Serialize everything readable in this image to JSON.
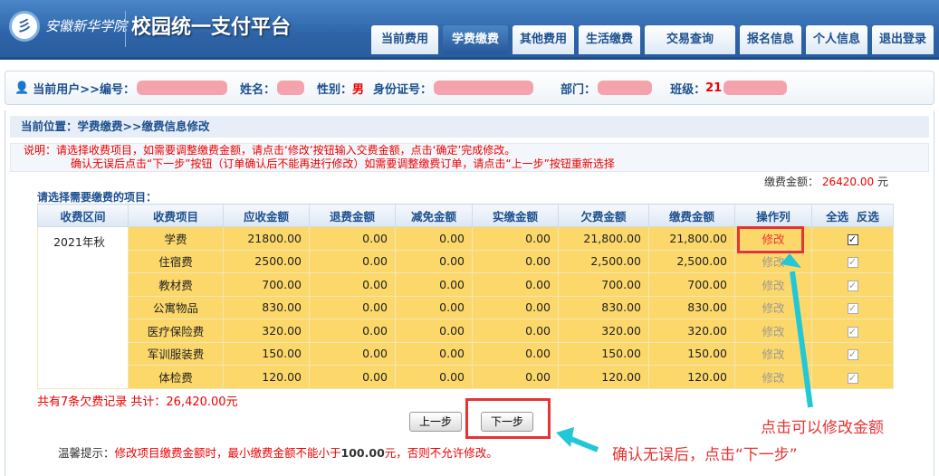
{
  "header": {
    "logo_text": "安徽新华学院",
    "platform": "校园统一支付平台",
    "tabs": [
      {
        "label": "当前费用"
      },
      {
        "label": "学费缴费",
        "active": true
      },
      {
        "label": "其他费用"
      },
      {
        "label": "生活缴费"
      },
      {
        "label": "交易查询"
      },
      {
        "label": "报名信息"
      },
      {
        "label": "个人信息"
      },
      {
        "label": "退出登录"
      }
    ]
  },
  "user": {
    "prefix": "当前用户>>编号：",
    "name_label": "姓名：",
    "gender_label": "性别：",
    "gender": "男",
    "id_label": "身份证号：",
    "dept_label": "部门：",
    "class_label": "班级：",
    "class_value": "21"
  },
  "breadcrumb": "当前位置：学费缴费>>缴费信息修改",
  "notice": {
    "line1": "说明：请选择收费项目，如需要调整缴费金额，请点击‘修改’按钮输入交费金额，点击‘确定’完成修改。",
    "line2": "确认无误后点击“下一步”按钮（订单确认后不能再进行修改）如需要调整缴费订单，请点击“上一步”按钮重新选择"
  },
  "amount": {
    "label": "缴费金额：",
    "value": "26420.00",
    "unit": "元"
  },
  "select_label": "请选择需要缴费的项目：",
  "table": {
    "headers": [
      "收费区间",
      "收费项目",
      "应收金额",
      "退费金额",
      "减免金额",
      "实缴金额",
      "欠费金额",
      "缴费金额",
      "操作列",
      "全选",
      "反选"
    ],
    "term": "2021年秋",
    "rows": [
      {
        "item": "学费",
        "due": "21800.00",
        "refund": "0.00",
        "waive": "0.00",
        "paid": "0.00",
        "owed": "21,800.00",
        "pay": "21,800.00",
        "action": "修改"
      },
      {
        "item": "住宿费",
        "due": "2500.00",
        "refund": "0.00",
        "waive": "0.00",
        "paid": "0.00",
        "owed": "2,500.00",
        "pay": "2,500.00",
        "action": "修改"
      },
      {
        "item": "教材费",
        "due": "700.00",
        "refund": "0.00",
        "waive": "0.00",
        "paid": "0.00",
        "owed": "700.00",
        "pay": "700.00",
        "action": "修改"
      },
      {
        "item": "公寓物品",
        "due": "830.00",
        "refund": "0.00",
        "waive": "0.00",
        "paid": "0.00",
        "owed": "830.00",
        "pay": "830.00",
        "action": "修改"
      },
      {
        "item": "医疗保险费",
        "due": "320.00",
        "refund": "0.00",
        "waive": "0.00",
        "paid": "0.00",
        "owed": "320.00",
        "pay": "320.00",
        "action": "修改"
      },
      {
        "item": "军训服装费",
        "due": "150.00",
        "refund": "0.00",
        "waive": "0.00",
        "paid": "0.00",
        "owed": "150.00",
        "pay": "150.00",
        "action": "修改"
      },
      {
        "item": "体检费",
        "due": "120.00",
        "refund": "0.00",
        "waive": "0.00",
        "paid": "0.00",
        "owed": "120.00",
        "pay": "120.00",
        "action": "修改"
      }
    ]
  },
  "summary": "共有7条欠费记录  共计：26,420.00元",
  "buttons": {
    "prev": "上一步",
    "next": "下一步"
  },
  "tip": {
    "label": "温馨提示：",
    "text1": "修改项目缴费金额时，最小缴费金额不能小于",
    "bold": "100.00",
    "text2": "元，否则不允许修改。"
  },
  "annotations": {
    "edit_hint": "点击可以修改金额",
    "next_hint": "确认无误后，点击“下一步”",
    "color": "#e63333",
    "arrow_color": "#22c8d8"
  }
}
